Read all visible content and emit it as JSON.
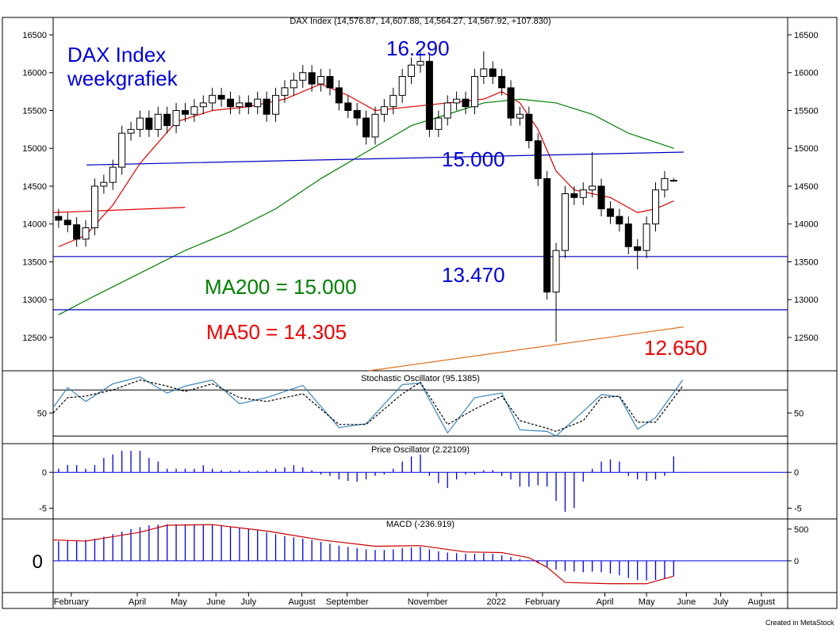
{
  "chart_data": [
    {
      "type": "candlestick",
      "title": "DAX Index (14,576.87, 14,607.88, 14,564.27, 14,567.92, +107.830)",
      "annotations": [
        {
          "text": "DAX Index",
          "color": "#0000dd"
        },
        {
          "text": "weekgrafiek",
          "color": "#0000dd"
        },
        {
          "text": "16.290",
          "color": "#0000dd"
        },
        {
          "text": "15.000",
          "color": "#0000dd"
        },
        {
          "text": "13.470",
          "color": "#0000dd"
        },
        {
          "text": "MA200 = 15.000",
          "color": "#008000"
        },
        {
          "text": "MA50 = 14.305",
          "color": "#ee0000"
        },
        {
          "text": "12.650",
          "color": "#ee0000"
        }
      ],
      "footer": "Created in MetaStock",
      "xlim": [
        0.4,
        81.6
      ],
      "xticks": [
        {
          "value": 2.4,
          "label": "February"
        },
        {
          "value": 9.7,
          "label": "April"
        },
        {
          "value": 14.3,
          "label": "May"
        },
        {
          "value": 18.4,
          "label": "June"
        },
        {
          "value": 22,
          "label": "July"
        },
        {
          "value": 27.9,
          "label": "August"
        },
        {
          "value": 32.9,
          "label": "September"
        },
        {
          "value": 41.8,
          "label": "November"
        },
        {
          "value": 49.4,
          "label": "2022"
        },
        {
          "value": 54.5,
          "label": "February"
        },
        {
          "value": 61.4,
          "label": "April"
        },
        {
          "value": 66,
          "label": "May"
        },
        {
          "value": 70.4,
          "label": "June"
        },
        {
          "value": 74.2,
          "label": "July"
        },
        {
          "value": 78.7,
          "label": "August"
        }
      ],
      "ylim": [
        12060,
        16730
      ],
      "yticks": [
        12500,
        13000,
        13500,
        14000,
        14500,
        15000,
        15500,
        16000,
        16500
      ],
      "up_color": "#ffffff",
      "down_color": "#000000",
      "open": [
        14100,
        14050,
        13990,
        13800,
        13950,
        14500,
        14550,
        14750,
        15200,
        15250,
        15400,
        15250,
        15450,
        15300,
        15500,
        15450,
        15550,
        15600,
        15700,
        15650,
        15550,
        15600,
        15550,
        15650,
        15450,
        15700,
        15800,
        15900,
        16000,
        15850,
        15950,
        15800,
        15600,
        15500,
        15400,
        15150,
        15450,
        15550,
        15700,
        15950,
        16100,
        16150,
        15250,
        15400,
        15600,
        15650,
        15550,
        15950,
        16050,
        15950,
        15800,
        15400,
        15450,
        15100,
        14600,
        13100,
        13650,
        14400,
        14350,
        14450,
        14500,
        14200,
        14100,
        14000,
        13700,
        13650,
        14000,
        14450,
        14576.87
      ],
      "high": [
        14200,
        14150,
        14090,
        14050,
        14600,
        14650,
        14850,
        15300,
        15350,
        15500,
        15500,
        15550,
        15550,
        15600,
        15600,
        15650,
        15700,
        15800,
        15800,
        15750,
        15700,
        15700,
        15750,
        15750,
        15800,
        15900,
        16000,
        16100,
        16100,
        16050,
        16050,
        15900,
        15700,
        15600,
        15500,
        15550,
        15650,
        15800,
        16050,
        16200,
        16290,
        16250,
        15500,
        15700,
        15750,
        15750,
        16050,
        16280,
        16150,
        16050,
        15900,
        15550,
        15550,
        15200,
        14700,
        13750,
        14500,
        14500,
        14550,
        14950,
        14600,
        14300,
        14200,
        14100,
        13800,
        14100,
        14550,
        14700,
        14607.88
      ],
      "low": [
        13950,
        13890,
        13700,
        13700,
        13850,
        14400,
        14450,
        14650,
        15100,
        15150,
        15150,
        15150,
        15200,
        15200,
        15350,
        15350,
        15450,
        15500,
        15550,
        15450,
        15450,
        15450,
        15450,
        15350,
        15350,
        15600,
        15700,
        15800,
        15750,
        15750,
        15700,
        15500,
        15400,
        15300,
        15050,
        15050,
        15350,
        15450,
        15600,
        15850,
        16000,
        15150,
        15150,
        15300,
        15500,
        15450,
        15450,
        15850,
        15850,
        15700,
        15300,
        15300,
        15000,
        14500,
        13000,
        12440,
        13550,
        14250,
        14250,
        14350,
        14100,
        14000,
        13900,
        13600,
        13400,
        13550,
        13900,
        14350,
        14564.27
      ],
      "close": [
        14050,
        13990,
        13800,
        13950,
        14500,
        14550,
        14750,
        15200,
        15250,
        15400,
        15250,
        15450,
        15300,
        15500,
        15450,
        15550,
        15600,
        15700,
        15650,
        15550,
        15600,
        15550,
        15650,
        15450,
        15700,
        15800,
        15900,
        16000,
        15850,
        15950,
        15800,
        15600,
        15500,
        15400,
        15150,
        15450,
        15550,
        15700,
        15950,
        16100,
        16150,
        15250,
        15400,
        15600,
        15650,
        15550,
        15950,
        16050,
        15950,
        15800,
        15400,
        15450,
        15100,
        14600,
        13100,
        13650,
        14400,
        14350,
        14450,
        14500,
        14200,
        14100,
        14000,
        13700,
        13650,
        14000,
        14450,
        14600,
        14567.92
      ],
      "lines": [
        {
          "color": "#e00000",
          "x": [
            1,
            4,
            7,
            10,
            14,
            18,
            22,
            26,
            30,
            33,
            36,
            40,
            44,
            48,
            50,
            52,
            54,
            56,
            58,
            62,
            65,
            67,
            69
          ],
          "values": [
            13700,
            13850,
            14250,
            14800,
            15350,
            15500,
            15550,
            15650,
            15850,
            15700,
            15500,
            15550,
            15600,
            15650,
            15750,
            15600,
            15250,
            14700,
            14450,
            14350,
            14150,
            14200,
            14305
          ]
        },
        {
          "color": "#008000",
          "x": [
            1,
            5,
            10,
            15,
            20,
            25,
            30,
            35,
            40,
            44,
            48,
            52,
            56,
            60,
            64,
            69
          ],
          "values": [
            12800,
            13050,
            13350,
            13650,
            13900,
            14200,
            14600,
            14950,
            15300,
            15450,
            15600,
            15650,
            15600,
            15450,
            15200,
            15000
          ]
        },
        {
          "color": "#0000c0",
          "x": [
            0.4,
            81.6
          ],
          "values": [
            13570,
            13570
          ]
        },
        {
          "color": "#0000c0",
          "x": [
            0.4,
            81.6
          ],
          "values": [
            12866,
            12866
          ]
        },
        {
          "color": "#0000c0",
          "x": [
            4.1,
            70.1
          ],
          "values": [
            14780,
            14950
          ]
        },
        {
          "color": "#e00000",
          "x": [
            0.4,
            15
          ],
          "values": [
            14150,
            14220
          ]
        },
        {
          "color": "#e07020",
          "x": [
            35.3,
            70.1
          ],
          "values": [
            12060,
            12640
          ]
        }
      ]
    },
    {
      "type": "line",
      "title": "Stochastic Oscillator (95.1385)",
      "ylim": [
        10,
        105
      ],
      "yticks": [
        50
      ],
      "hlines": [
        80,
        20
      ],
      "hline_color": "#000000",
      "series": [
        {
          "color": "#3a86b8",
          "dash": false,
          "x": [
            0.4,
            2,
            4,
            7,
            10,
            13,
            15,
            18,
            21,
            24,
            28,
            32,
            35,
            39,
            41,
            44,
            47,
            50,
            52,
            55,
            56,
            59,
            61,
            63,
            65,
            67,
            70
          ],
          "values": [
            57,
            83,
            65,
            88,
            97,
            76,
            85,
            93,
            62,
            70,
            86,
            31,
            36,
            87,
            89,
            24,
            70,
            76,
            28,
            26,
            20,
            52,
            74,
            71,
            29,
            44,
            93
          ]
        },
        {
          "color": "#000000",
          "dash": true,
          "x": [
            0.4,
            2,
            4,
            7,
            10,
            13,
            15,
            18,
            21,
            24,
            28,
            32,
            35,
            39,
            41,
            44,
            47,
            50,
            52,
            55,
            56,
            59,
            61,
            63,
            65,
            67,
            70
          ],
          "values": [
            50,
            70,
            72,
            80,
            93,
            85,
            78,
            88,
            70,
            65,
            75,
            35,
            35,
            75,
            90,
            35,
            55,
            72,
            40,
            30,
            26,
            40,
            70,
            72,
            38,
            38,
            85
          ]
        }
      ]
    },
    {
      "type": "bar",
      "title": "Price Oscillator (2.22109)",
      "ylim": [
        -6.5,
        4
      ],
      "yticks": [
        -5,
        0
      ],
      "color": "#0000dd",
      "values": [
        0.5,
        1,
        1,
        0.5,
        1,
        2,
        2.5,
        3,
        3,
        3,
        2,
        1.5,
        0.5,
        0.5,
        0.5,
        0.5,
        1,
        0.5,
        0.3,
        0.2,
        0.3,
        0.2,
        0.2,
        0.3,
        0.5,
        0.7,
        1,
        0.7,
        0.3,
        -0.3,
        -0.5,
        -1,
        -1.2,
        -1.3,
        -1,
        -0.5,
        -0.3,
        0.5,
        1.5,
        2.2,
        2.5,
        -0.5,
        -1.5,
        -2.2,
        -1,
        -0.3,
        -0.3,
        0.3,
        0.3,
        -0.5,
        -1,
        -2,
        -2,
        -1.8,
        -2,
        -4,
        -5.5,
        -5,
        -1.3,
        0.5,
        1.5,
        1.8,
        1.5,
        -0.5,
        -1,
        -1.2,
        -1,
        -0.5,
        2.22109
      ]
    },
    {
      "type": "bar",
      "title": "MACD (-236.919)",
      "ylim": [
        -500,
        660
      ],
      "yticks": [
        0,
        500
      ],
      "color": "#0000dd",
      "values": [
        310,
        320,
        320,
        330,
        350,
        380,
        420,
        460,
        500,
        530,
        560,
        570,
        575,
        575,
        575,
        575,
        575,
        575,
        560,
        540,
        520,
        500,
        480,
        450,
        420,
        390,
        370,
        350,
        330,
        300,
        270,
        240,
        220,
        200,
        180,
        170,
        170,
        180,
        200,
        210,
        220,
        180,
        150,
        130,
        120,
        110,
        110,
        120,
        110,
        90,
        60,
        30,
        0,
        -40,
        -100,
        -140,
        -160,
        -170,
        -180,
        -170,
        -180,
        -200,
        -230,
        -270,
        -300,
        -310,
        -300,
        -280,
        -236.919
      ],
      "line": {
        "color": "#cc0000",
        "x": [
          0.4,
          4,
          10,
          13,
          18,
          24,
          30,
          36,
          41,
          46,
          50,
          53,
          55,
          57,
          62,
          66,
          69
        ],
        "values": [
          330,
          310,
          450,
          560,
          570,
          470,
          330,
          230,
          240,
          140,
          130,
          50,
          -100,
          -340,
          -360,
          -360,
          -240
        ]
      }
    }
  ]
}
